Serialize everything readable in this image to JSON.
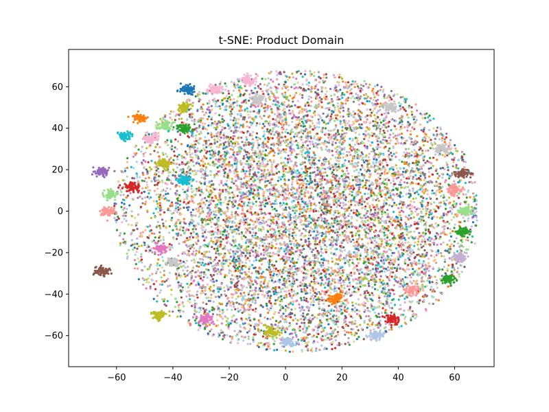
{
  "chart_data": {
    "type": "scatter",
    "title": "t-SNE: Product Domain",
    "xlabel": "",
    "ylabel": "",
    "xlim": [
      -77,
      74
    ],
    "ylim": [
      -75,
      78
    ],
    "xticks": [
      -60,
      -40,
      -20,
      0,
      20,
      40,
      60
    ],
    "yticks": [
      -60,
      -40,
      -20,
      0,
      20,
      40,
      60
    ],
    "xtick_labels": [
      "−60",
      "−40",
      "−20",
      "0",
      "20",
      "40",
      "60"
    ],
    "ytick_labels": [
      "−60",
      "−40",
      "−20",
      "0",
      "20",
      "40",
      "60"
    ],
    "grid": false,
    "legend": "none",
    "palette": [
      "#1f77b4",
      "#aec7e8",
      "#ff7f0e",
      "#ffbb78",
      "#2ca02c",
      "#98df8a",
      "#d62728",
      "#ff9896",
      "#9467bd",
      "#c5b0d5",
      "#8c564b",
      "#c49c94",
      "#e377c2",
      "#f7b6d2",
      "#7f7f7f",
      "#c7c7c7",
      "#bcbd22",
      "#dbdb8d",
      "#17becf",
      "#9edae5"
    ],
    "clusters": [
      {
        "x": -35,
        "y": 59,
        "color": "#1f77b4"
      },
      {
        "x": -25,
        "y": 59,
        "color": "#f7b6d2"
      },
      {
        "x": -13,
        "y": 63,
        "color": "#f7b6d2"
      },
      {
        "x": -10,
        "y": 54,
        "color": "#c7c7c7"
      },
      {
        "x": -36,
        "y": 50,
        "color": "#bcbd22"
      },
      {
        "x": -52,
        "y": 45,
        "color": "#ff7f0e"
      },
      {
        "x": -43,
        "y": 41,
        "color": "#98df8a"
      },
      {
        "x": -36,
        "y": 40,
        "color": "#2ca02c"
      },
      {
        "x": -57,
        "y": 36,
        "color": "#17becf"
      },
      {
        "x": -48,
        "y": 35,
        "color": "#f7b6d2"
      },
      {
        "x": -43,
        "y": 23,
        "color": "#bcbd22"
      },
      {
        "x": -65,
        "y": 19,
        "color": "#9467bd"
      },
      {
        "x": -55,
        "y": 12,
        "color": "#d62728"
      },
      {
        "x": -36,
        "y": 15,
        "color": "#17becf"
      },
      {
        "x": -62,
        "y": 8,
        "color": "#98df8a"
      },
      {
        "x": -63,
        "y": 0,
        "color": "#ff9896"
      },
      {
        "x": -44,
        "y": -18,
        "color": "#e377c2"
      },
      {
        "x": -40,
        "y": -25,
        "color": "#c7c7c7"
      },
      {
        "x": -65,
        "y": -29,
        "color": "#8c564b"
      },
      {
        "x": -45,
        "y": -50,
        "color": "#bcbd22"
      },
      {
        "x": -28,
        "y": -52,
        "color": "#e377c2"
      },
      {
        "x": -5,
        "y": -58,
        "color": "#bcbd22"
      },
      {
        "x": 1,
        "y": -63,
        "color": "#aec7e8"
      },
      {
        "x": 18,
        "y": -42,
        "color": "#ff7f0e"
      },
      {
        "x": 38,
        "y": -52,
        "color": "#d62728"
      },
      {
        "x": 32,
        "y": -60,
        "color": "#aec7e8"
      },
      {
        "x": 45,
        "y": -38,
        "color": "#ff9896"
      },
      {
        "x": 58,
        "y": -33,
        "color": "#2ca02c"
      },
      {
        "x": 62,
        "y": -22,
        "color": "#c5b0d5"
      },
      {
        "x": 63,
        "y": -10,
        "color": "#2ca02c"
      },
      {
        "x": 64,
        "y": 0,
        "color": "#98df8a"
      },
      {
        "x": 63,
        "y": 18,
        "color": "#8c564b"
      },
      {
        "x": 60,
        "y": 10,
        "color": "#ff9896"
      },
      {
        "x": 55,
        "y": 30,
        "color": "#c7c7c7"
      },
      {
        "x": 37,
        "y": 50,
        "color": "#c7c7c7"
      }
    ]
  }
}
